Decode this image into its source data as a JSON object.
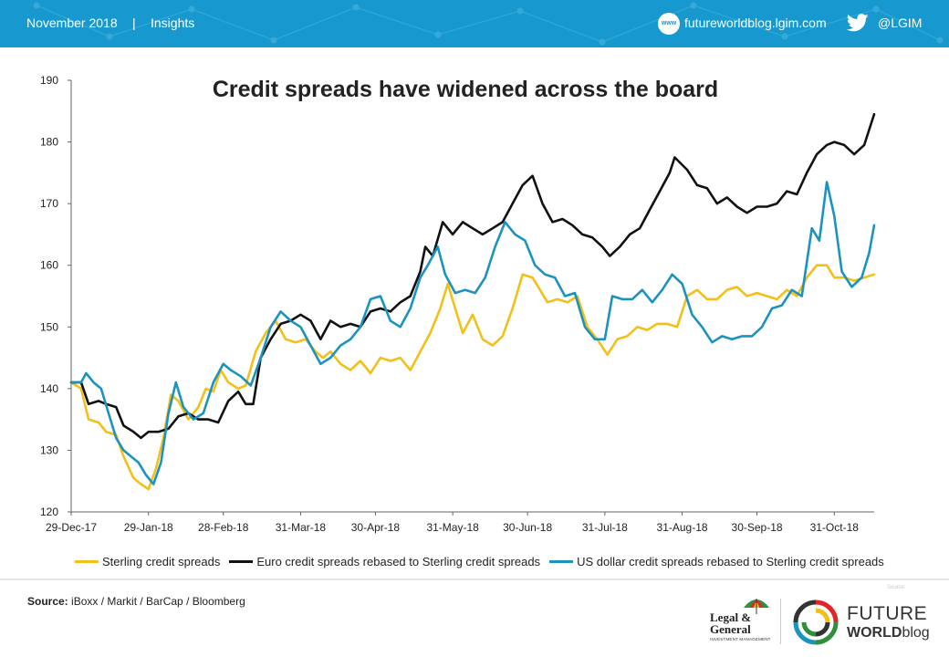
{
  "header": {
    "date": "November 2018",
    "separator": "|",
    "section": "Insights",
    "www_badge": "www",
    "blog_url": "futureworldblog.lgim.com",
    "twitter_handle": "@LGIM"
  },
  "chart_data": {
    "type": "line",
    "title": "Credit spreads have widened across the board",
    "xlabel": "",
    "ylabel": "",
    "ylim": [
      120,
      190
    ],
    "yticks": [
      120,
      130,
      140,
      150,
      160,
      170,
      180,
      190
    ],
    "xlim": [
      "2017-12-29",
      "2018-11-16"
    ],
    "xtick_labels": [
      "29-Dec-17",
      "29-Jan-18",
      "28-Feb-18",
      "31-Mar-18",
      "30-Apr-18",
      "31-May-18",
      "30-Jun-18",
      "31-Jul-18",
      "31-Aug-18",
      "30-Sep-18",
      "31-Oct-18"
    ],
    "xtick_dates": [
      "2017-12-29",
      "2018-01-29",
      "2018-02-28",
      "2018-03-31",
      "2018-04-30",
      "2018-05-31",
      "2018-06-30",
      "2018-07-31",
      "2018-08-31",
      "2018-09-30",
      "2018-10-31"
    ],
    "grid": false,
    "legend_position": "bottom",
    "series": [
      {
        "name": "Sterling credit spreads",
        "color": "#f2c019",
        "points": [
          [
            "2017-12-29",
            141
          ],
          [
            "2018-01-02",
            140
          ],
          [
            "2018-01-05",
            135
          ],
          [
            "2018-01-09",
            134.5
          ],
          [
            "2018-01-12",
            133
          ],
          [
            "2018-01-16",
            132.5
          ],
          [
            "2018-01-19",
            129
          ],
          [
            "2018-01-23",
            125.5
          ],
          [
            "2018-01-26",
            124.5
          ],
          [
            "2018-01-29",
            123.7
          ],
          [
            "2018-02-01",
            127
          ],
          [
            "2018-02-04",
            132
          ],
          [
            "2018-02-07",
            139
          ],
          [
            "2018-02-10",
            138
          ],
          [
            "2018-02-14",
            135
          ],
          [
            "2018-02-18",
            137
          ],
          [
            "2018-02-21",
            140
          ],
          [
            "2018-02-24",
            139.5
          ],
          [
            "2018-02-27",
            143
          ],
          [
            "2018-03-02",
            141
          ],
          [
            "2018-03-06",
            140
          ],
          [
            "2018-03-09",
            140.5
          ],
          [
            "2018-03-13",
            146
          ],
          [
            "2018-03-17",
            149
          ],
          [
            "2018-03-21",
            151
          ],
          [
            "2018-03-25",
            148
          ],
          [
            "2018-03-29",
            147.5
          ],
          [
            "2018-04-02",
            148
          ],
          [
            "2018-04-06",
            146
          ],
          [
            "2018-04-09",
            145
          ],
          [
            "2018-04-12",
            146
          ],
          [
            "2018-04-16",
            144
          ],
          [
            "2018-04-20",
            143
          ],
          [
            "2018-04-24",
            144.5
          ],
          [
            "2018-04-28",
            142.5
          ],
          [
            "2018-05-02",
            145
          ],
          [
            "2018-05-06",
            144.5
          ],
          [
            "2018-05-10",
            145
          ],
          [
            "2018-05-14",
            143
          ],
          [
            "2018-05-18",
            146
          ],
          [
            "2018-05-22",
            149
          ],
          [
            "2018-05-26",
            153
          ],
          [
            "2018-05-29",
            157
          ],
          [
            "2018-06-01",
            153
          ],
          [
            "2018-06-04",
            149
          ],
          [
            "2018-06-08",
            152
          ],
          [
            "2018-06-12",
            148
          ],
          [
            "2018-06-16",
            147
          ],
          [
            "2018-06-20",
            148.5
          ],
          [
            "2018-06-24",
            153
          ],
          [
            "2018-06-28",
            158.5
          ],
          [
            "2018-07-02",
            158
          ],
          [
            "2018-07-05",
            156
          ],
          [
            "2018-07-08",
            154
          ],
          [
            "2018-07-12",
            154.5
          ],
          [
            "2018-07-16",
            154
          ],
          [
            "2018-07-20",
            155
          ],
          [
            "2018-07-24",
            150
          ],
          [
            "2018-07-28",
            148
          ],
          [
            "2018-08-01",
            145.5
          ],
          [
            "2018-08-05",
            148
          ],
          [
            "2018-08-09",
            148.5
          ],
          [
            "2018-08-13",
            150
          ],
          [
            "2018-08-17",
            149.5
          ],
          [
            "2018-08-21",
            150.5
          ],
          [
            "2018-08-25",
            150.5
          ],
          [
            "2018-08-29",
            150
          ],
          [
            "2018-09-02",
            155
          ],
          [
            "2018-09-06",
            156
          ],
          [
            "2018-09-10",
            154.5
          ],
          [
            "2018-09-14",
            154.5
          ],
          [
            "2018-09-18",
            156
          ],
          [
            "2018-09-22",
            156.5
          ],
          [
            "2018-09-26",
            155
          ],
          [
            "2018-09-30",
            155.5
          ],
          [
            "2018-10-04",
            155
          ],
          [
            "2018-10-08",
            154.5
          ],
          [
            "2018-10-12",
            156
          ],
          [
            "2018-10-16",
            155
          ],
          [
            "2018-10-20",
            158
          ],
          [
            "2018-10-24",
            160
          ],
          [
            "2018-10-28",
            160
          ],
          [
            "2018-10-31",
            158
          ],
          [
            "2018-11-04",
            158
          ],
          [
            "2018-11-08",
            157.5
          ],
          [
            "2018-11-12",
            158
          ],
          [
            "2018-11-16",
            158.5
          ]
        ]
      },
      {
        "name": "Euro credit spreads rebased to Sterling credit spreads",
        "color": "#111111",
        "points": [
          [
            "2017-12-29",
            141
          ],
          [
            "2018-01-02",
            141
          ],
          [
            "2018-01-05",
            137.5
          ],
          [
            "2018-01-09",
            138
          ],
          [
            "2018-01-12",
            137.5
          ],
          [
            "2018-01-16",
            137
          ],
          [
            "2018-01-19",
            134
          ],
          [
            "2018-01-23",
            133
          ],
          [
            "2018-01-26",
            132
          ],
          [
            "2018-01-29",
            133
          ],
          [
            "2018-02-02",
            133
          ],
          [
            "2018-02-06",
            133.5
          ],
          [
            "2018-02-10",
            135.5
          ],
          [
            "2018-02-14",
            136
          ],
          [
            "2018-02-18",
            135
          ],
          [
            "2018-02-22",
            135
          ],
          [
            "2018-02-26",
            134.5
          ],
          [
            "2018-03-02",
            138
          ],
          [
            "2018-03-06",
            139.5
          ],
          [
            "2018-03-09",
            137.5
          ],
          [
            "2018-03-12",
            137.5
          ],
          [
            "2018-03-15",
            145
          ],
          [
            "2018-03-19",
            148
          ],
          [
            "2018-03-23",
            150.5
          ],
          [
            "2018-03-27",
            151
          ],
          [
            "2018-03-31",
            152
          ],
          [
            "2018-04-04",
            151
          ],
          [
            "2018-04-08",
            148
          ],
          [
            "2018-04-12",
            151
          ],
          [
            "2018-04-16",
            150
          ],
          [
            "2018-04-20",
            150.5
          ],
          [
            "2018-04-24",
            150
          ],
          [
            "2018-04-28",
            152.5
          ],
          [
            "2018-05-02",
            153
          ],
          [
            "2018-05-06",
            152.5
          ],
          [
            "2018-05-10",
            154
          ],
          [
            "2018-05-14",
            155
          ],
          [
            "2018-05-18",
            159
          ],
          [
            "2018-05-20",
            163
          ],
          [
            "2018-05-23",
            161.5
          ],
          [
            "2018-05-27",
            167
          ],
          [
            "2018-05-31",
            165
          ],
          [
            "2018-06-04",
            167
          ],
          [
            "2018-06-08",
            166
          ],
          [
            "2018-06-12",
            165
          ],
          [
            "2018-06-16",
            166
          ],
          [
            "2018-06-20",
            167
          ],
          [
            "2018-06-24",
            170
          ],
          [
            "2018-06-28",
            173
          ],
          [
            "2018-07-02",
            174.5
          ],
          [
            "2018-07-06",
            170
          ],
          [
            "2018-07-10",
            167
          ],
          [
            "2018-07-14",
            167.5
          ],
          [
            "2018-07-18",
            166.5
          ],
          [
            "2018-07-22",
            165
          ],
          [
            "2018-07-26",
            164.5
          ],
          [
            "2018-07-30",
            163
          ],
          [
            "2018-08-02",
            161.5
          ],
          [
            "2018-08-06",
            163
          ],
          [
            "2018-08-10",
            165
          ],
          [
            "2018-08-14",
            166
          ],
          [
            "2018-08-18",
            169
          ],
          [
            "2018-08-22",
            172
          ],
          [
            "2018-08-26",
            175
          ],
          [
            "2018-08-28",
            177.5
          ],
          [
            "2018-09-02",
            175.5
          ],
          [
            "2018-09-06",
            173
          ],
          [
            "2018-09-10",
            172.5
          ],
          [
            "2018-09-14",
            170
          ],
          [
            "2018-09-18",
            171
          ],
          [
            "2018-09-22",
            169.5
          ],
          [
            "2018-09-26",
            168.5
          ],
          [
            "2018-09-30",
            169.5
          ],
          [
            "2018-10-04",
            169.5
          ],
          [
            "2018-10-08",
            170
          ],
          [
            "2018-10-12",
            172
          ],
          [
            "2018-10-16",
            171.5
          ],
          [
            "2018-10-20",
            175
          ],
          [
            "2018-10-24",
            178
          ],
          [
            "2018-10-28",
            179.5
          ],
          [
            "2018-10-31",
            180
          ],
          [
            "2018-11-04",
            179.5
          ],
          [
            "2018-11-08",
            178
          ],
          [
            "2018-11-12",
            179.5
          ],
          [
            "2018-11-16",
            184.5
          ]
        ]
      },
      {
        "name": "US dollar credit spreads rebased to Sterling credit spreads",
        "color": "#1b93be",
        "points": [
          [
            "2017-12-29",
            141
          ],
          [
            "2018-01-02",
            141
          ],
          [
            "2018-01-04",
            142.5
          ],
          [
            "2018-01-07",
            141
          ],
          [
            "2018-01-10",
            140
          ],
          [
            "2018-01-13",
            136
          ],
          [
            "2018-01-16",
            132
          ],
          [
            "2018-01-19",
            130
          ],
          [
            "2018-01-22",
            129
          ],
          [
            "2018-01-25",
            128
          ],
          [
            "2018-01-28",
            126
          ],
          [
            "2018-01-31",
            124.5
          ],
          [
            "2018-02-03",
            128
          ],
          [
            "2018-02-06",
            136
          ],
          [
            "2018-02-09",
            141
          ],
          [
            "2018-02-12",
            137
          ],
          [
            "2018-02-16",
            135
          ],
          [
            "2018-02-20",
            136
          ],
          [
            "2018-02-24",
            141
          ],
          [
            "2018-02-28",
            144
          ],
          [
            "2018-03-03",
            143
          ],
          [
            "2018-03-07",
            142
          ],
          [
            "2018-03-11",
            140.5
          ],
          [
            "2018-03-15",
            145
          ],
          [
            "2018-03-19",
            150
          ],
          [
            "2018-03-23",
            152.5
          ],
          [
            "2018-03-27",
            151
          ],
          [
            "2018-03-31",
            150
          ],
          [
            "2018-04-04",
            147
          ],
          [
            "2018-04-08",
            144
          ],
          [
            "2018-04-12",
            145
          ],
          [
            "2018-04-16",
            147
          ],
          [
            "2018-04-20",
            148
          ],
          [
            "2018-04-24",
            150
          ],
          [
            "2018-04-28",
            154.5
          ],
          [
            "2018-05-02",
            155
          ],
          [
            "2018-05-06",
            151
          ],
          [
            "2018-05-10",
            150
          ],
          [
            "2018-05-14",
            153
          ],
          [
            "2018-05-18",
            158
          ],
          [
            "2018-05-21",
            160
          ],
          [
            "2018-05-25",
            163
          ],
          [
            "2018-05-28",
            158.5
          ],
          [
            "2018-06-01",
            155.5
          ],
          [
            "2018-06-05",
            156
          ],
          [
            "2018-06-09",
            155.5
          ],
          [
            "2018-06-13",
            158
          ],
          [
            "2018-06-17",
            163
          ],
          [
            "2018-06-21",
            167
          ],
          [
            "2018-06-25",
            165
          ],
          [
            "2018-06-29",
            164
          ],
          [
            "2018-07-03",
            160
          ],
          [
            "2018-07-07",
            158.5
          ],
          [
            "2018-07-11",
            158
          ],
          [
            "2018-07-15",
            155
          ],
          [
            "2018-07-19",
            155.5
          ],
          [
            "2018-07-23",
            150
          ],
          [
            "2018-07-27",
            148
          ],
          [
            "2018-07-31",
            148
          ],
          [
            "2018-08-03",
            155
          ],
          [
            "2018-08-07",
            154.5
          ],
          [
            "2018-08-11",
            154.5
          ],
          [
            "2018-08-15",
            156
          ],
          [
            "2018-08-19",
            154
          ],
          [
            "2018-08-23",
            156
          ],
          [
            "2018-08-27",
            158.5
          ],
          [
            "2018-08-31",
            157
          ],
          [
            "2018-09-04",
            152
          ],
          [
            "2018-09-08",
            150
          ],
          [
            "2018-09-12",
            147.5
          ],
          [
            "2018-09-16",
            148.5
          ],
          [
            "2018-09-20",
            148
          ],
          [
            "2018-09-24",
            148.5
          ],
          [
            "2018-09-28",
            148.5
          ],
          [
            "2018-10-02",
            150
          ],
          [
            "2018-10-06",
            153
          ],
          [
            "2018-10-10",
            153.5
          ],
          [
            "2018-10-14",
            156
          ],
          [
            "2018-10-18",
            155
          ],
          [
            "2018-10-22",
            166
          ],
          [
            "2018-10-25",
            164
          ],
          [
            "2018-10-28",
            173.5
          ],
          [
            "2018-10-31",
            168
          ],
          [
            "2018-11-03",
            159
          ],
          [
            "2018-11-07",
            156.5
          ],
          [
            "2018-11-11",
            158
          ],
          [
            "2018-11-14",
            162
          ],
          [
            "2018-11-16",
            166.5
          ]
        ]
      }
    ]
  },
  "footer": {
    "source_label": "Source:",
    "source_text": "iBoxx / Markit / BarCap / Bloomberg",
    "source_mini": "Source:",
    "lg_logo_line1": "Legal &",
    "lg_logo_line2": "General",
    "lg_logo_sub": "INVESTMENT MANAGEMENT",
    "fwb_future": "FUTURE",
    "fwb_world": "WORLD",
    "fwb_blog": "blog"
  }
}
